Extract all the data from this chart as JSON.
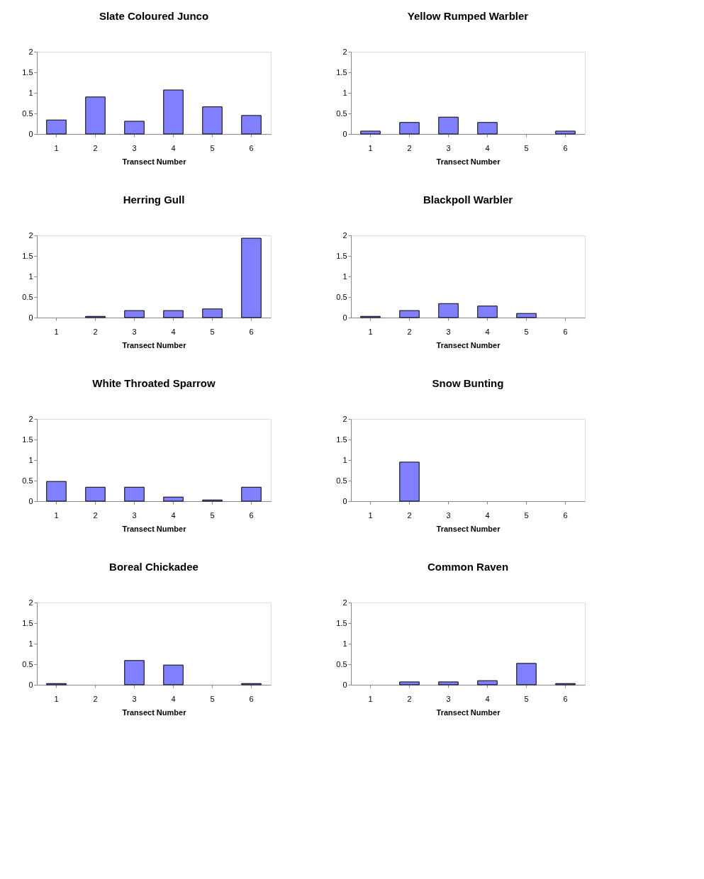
{
  "chart_data": [
    {
      "type": "bar",
      "title": "Slate Coloured Junco",
      "xlabel": "Transect Number",
      "categories": [
        "1",
        "2",
        "3",
        "4",
        "5",
        "6"
      ],
      "values": [
        0.34,
        0.9,
        0.31,
        1.07,
        0.66,
        0.45
      ],
      "color": "#8080ff",
      "ylim": [
        0,
        2
      ],
      "yticks": [
        0,
        0.5,
        1,
        1.5,
        2
      ],
      "grid": false
    },
    {
      "type": "bar",
      "title": "Yellow Rumped Warbler",
      "xlabel": "Transect Number",
      "categories": [
        "1",
        "2",
        "3",
        "4",
        "5",
        "6"
      ],
      "values": [
        0.07,
        0.28,
        0.41,
        0.28,
        null,
        0.07
      ],
      "color": "#8080ff",
      "ylim": [
        0,
        2
      ],
      "yticks": [
        0,
        0.5,
        1,
        1.5,
        2
      ],
      "grid": false
    },
    {
      "type": "bar",
      "title": "Herring Gull",
      "xlabel": "Transect Number",
      "categories": [
        "1",
        "2",
        "3",
        "4",
        "5",
        "6"
      ],
      "values": [
        null,
        0.03,
        0.17,
        0.17,
        0.21,
        1.93
      ],
      "color": "#8080ff",
      "ylim": [
        0,
        2
      ],
      "yticks": [
        0,
        0.5,
        1,
        1.5,
        2
      ],
      "grid": false
    },
    {
      "type": "bar",
      "title": "Blackpoll Warbler",
      "xlabel": "Transect Number",
      "categories": [
        "1",
        "2",
        "3",
        "4",
        "5",
        "6"
      ],
      "values": [
        0.03,
        0.17,
        0.34,
        0.28,
        0.1,
        null
      ],
      "color": "#8080ff",
      "ylim": [
        0,
        2
      ],
      "yticks": [
        0,
        0.5,
        1,
        1.5,
        2
      ],
      "grid": false
    },
    {
      "type": "bar",
      "title": "White Throated Sparrow",
      "xlabel": "Transect Number",
      "categories": [
        "1",
        "2",
        "3",
        "4",
        "5",
        "6"
      ],
      "values": [
        0.48,
        0.34,
        0.34,
        0.1,
        0.03,
        0.34
      ],
      "color": "#8080ff",
      "ylim": [
        0,
        2
      ],
      "yticks": [
        0,
        0.5,
        1,
        1.5,
        2
      ],
      "grid": false
    },
    {
      "type": "bar",
      "title": "Snow Bunting",
      "xlabel": "Transect Number",
      "categories": [
        "1",
        "2",
        "3",
        "4",
        "5",
        "6"
      ],
      "values": [
        null,
        0.95,
        null,
        null,
        null,
        null
      ],
      "color": "#8080ff",
      "ylim": [
        0,
        2
      ],
      "yticks": [
        0,
        0.5,
        1,
        1.5,
        2
      ],
      "grid": false
    },
    {
      "type": "bar",
      "title": "Boreal Chickadee",
      "xlabel": "Transect Number",
      "categories": [
        "1",
        "2",
        "3",
        "4",
        "5",
        "6"
      ],
      "values": [
        0.03,
        null,
        0.59,
        0.48,
        null,
        0.03
      ],
      "color": "#8080ff",
      "ylim": [
        0,
        2
      ],
      "yticks": [
        0,
        0.5,
        1,
        1.5,
        2
      ],
      "grid": false
    },
    {
      "type": "bar",
      "title": "Common Raven",
      "xlabel": "Transect Number",
      "categories": [
        "1",
        "2",
        "3",
        "4",
        "5",
        "6"
      ],
      "values": [
        null,
        0.07,
        0.07,
        0.1,
        0.52,
        0.03
      ],
      "color": "#8080ff",
      "ylim": [
        0,
        2
      ],
      "yticks": [
        0,
        0.5,
        1,
        1.5,
        2
      ],
      "grid": false
    }
  ]
}
